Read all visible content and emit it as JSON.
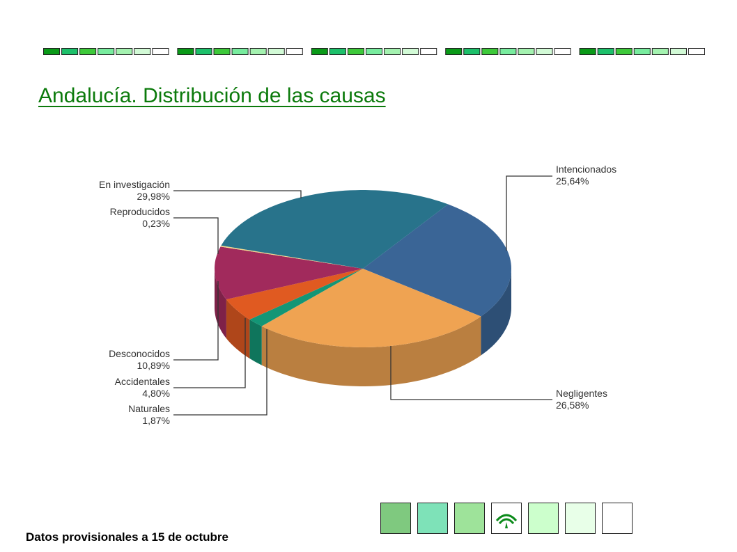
{
  "page": {
    "title": "Andalucía. Distribución de las causas",
    "footnote": "Datos provisionales a 15 de octubre"
  },
  "decor": {
    "strip_groups": 5,
    "strip_colors": [
      "#0a9a18",
      "#1dc06a",
      "#3dc93a",
      "#78ec9e",
      "#a4f2b0",
      "#d2fad6",
      "#ffffff"
    ],
    "box_colors": [
      "#7fc97f",
      "#7ee2b8",
      "#9ee39a",
      "#ffffff",
      "#ccffcc",
      "#e8ffe8",
      "#ffffff"
    ],
    "logo_box_index": 3,
    "logo_color": "#0b8a1a"
  },
  "chart_data": {
    "type": "pie",
    "style": "3d",
    "unit": "%",
    "slices": [
      {
        "label": "Intencionados",
        "value": 25.64,
        "value_text": "25,64%",
        "color": "#3a6596"
      },
      {
        "label": "Negligentes",
        "value": 26.58,
        "value_text": "26,58%",
        "color": "#efa352"
      },
      {
        "label": "Naturales",
        "value": 1.87,
        "value_text": "1,87%",
        "color": "#139676"
      },
      {
        "label": "Accidentales",
        "value": 4.8,
        "value_text": "4,80%",
        "color": "#e05a21"
      },
      {
        "label": "Desconocidos",
        "value": 10.89,
        "value_text": "10,89%",
        "color": "#a12a5c"
      },
      {
        "label": "Reproducidos",
        "value": 0.23,
        "value_text": "0,23%",
        "color": "#f3d98a"
      },
      {
        "label": "En investigación",
        "value": 29.98,
        "value_text": "29,98%",
        "color": "#28738b"
      }
    ]
  }
}
